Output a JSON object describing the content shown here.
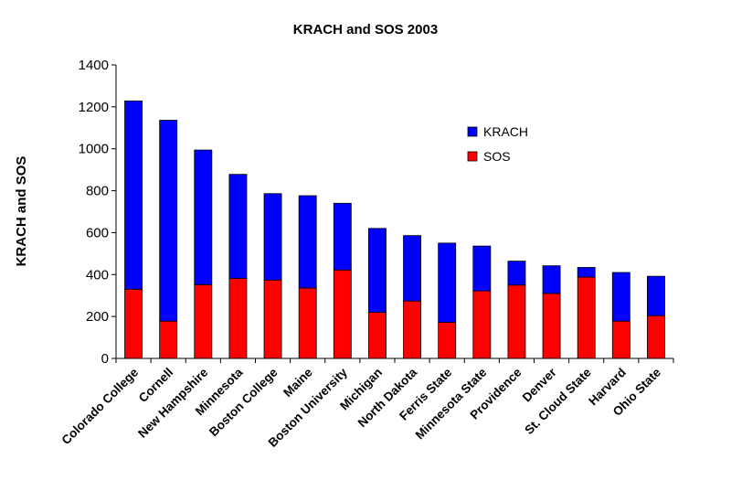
{
  "chart_data": {
    "type": "bar",
    "stacked": true,
    "title": "KRACH and SOS 2003",
    "xlabel": "",
    "ylabel": "KRACH and SOS",
    "ylim": [
      0,
      1400
    ],
    "yticks": [
      0,
      200,
      400,
      600,
      800,
      1000,
      1200,
      1400
    ],
    "grid": false,
    "legend_position": "top-right",
    "categories": [
      "Colorado College",
      "Cornell",
      "New Hampshire",
      "Minnesota",
      "Boston College",
      "Maine",
      "Boston University",
      "Michigan",
      "North Dakota",
      "Ferris State",
      "Minnesota State",
      "Providence",
      "Denver",
      "St. Cloud State",
      "Harvard",
      "Ohio State"
    ],
    "series": [
      {
        "name": "SOS",
        "color": "#ff0000",
        "values": [
          330,
          178,
          352,
          382,
          374,
          336,
          422,
          220,
          274,
          172,
          322,
          350,
          310,
          388,
          178,
          204
        ]
      },
      {
        "name": "KRACH",
        "color": "#0000ff",
        "values": [
          898,
          958,
          642,
          496,
          412,
          440,
          318,
          400,
          312,
          378,
          214,
          114,
          132,
          46,
          232,
          188
        ]
      }
    ],
    "legend_order": [
      "KRACH",
      "SOS"
    ]
  }
}
